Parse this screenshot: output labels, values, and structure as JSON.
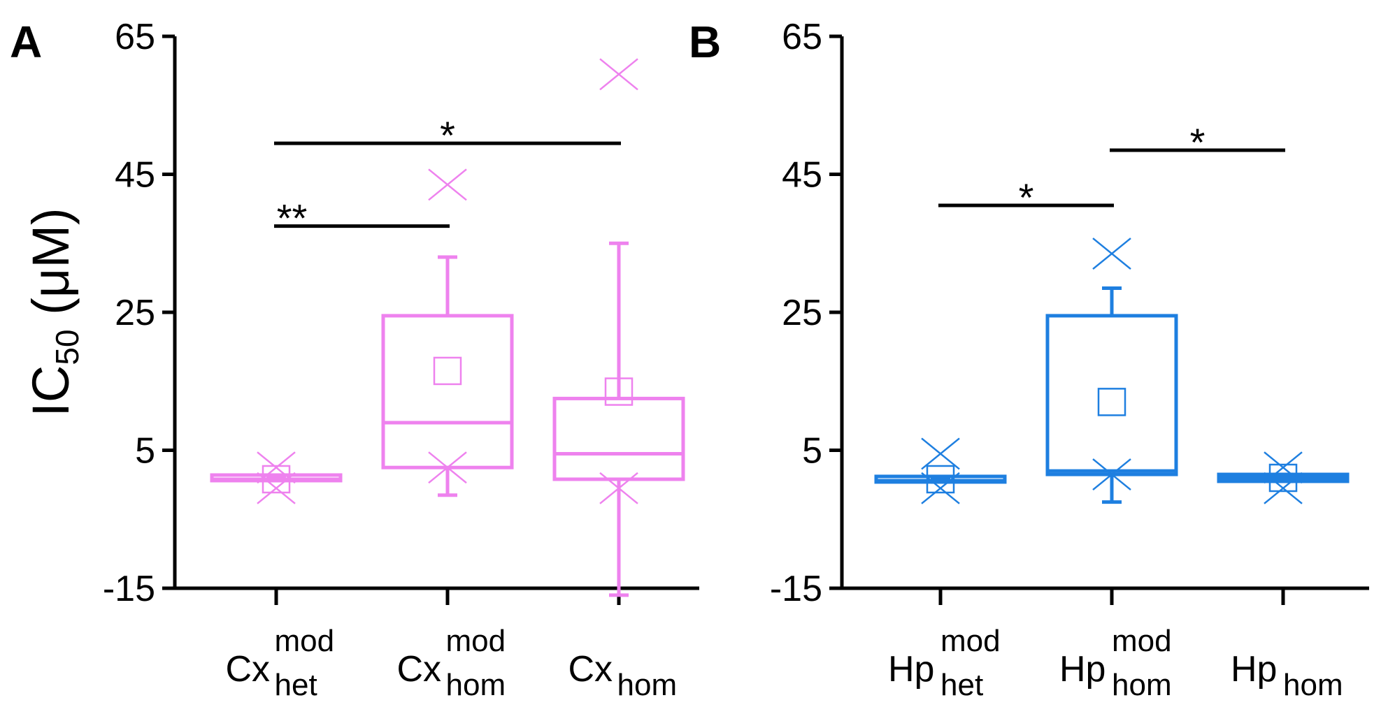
{
  "chart_data": [
    {
      "type": "box",
      "panel_label": "A",
      "ylabel": "IC",
      "ylabel_sub": "50",
      "ylabel_unit": " (μM)",
      "ylim": [
        -15,
        65
      ],
      "yticks": [
        -15,
        5,
        25,
        45,
        65
      ],
      "ytick_labels": [
        "-15",
        "5",
        "25",
        "45",
        "65"
      ],
      "color": "#EE82EE",
      "categories": [
        {
          "base": "Cx",
          "sup": "mod",
          "sub": "het"
        },
        {
          "base": "Cx",
          "sup": "mod",
          "sub": "hom"
        },
        {
          "base": "Cx",
          "sup": "",
          "sub": "hom"
        }
      ],
      "boxes": [
        {
          "q1": 0.6,
          "median": 0.8,
          "q3": 1.0,
          "whisker_low": 0.6,
          "whisker_high": 1.0,
          "mean": 0.8,
          "outliers": [
            2.5,
            -0.5
          ]
        },
        {
          "q1": 2.5,
          "median": 9.0,
          "q3": 24.5,
          "whisker_low": -1.5,
          "whisker_high": 33.0,
          "mean": 16.5,
          "outliers": [
            43.5,
            2.5
          ]
        },
        {
          "q1": 0.8,
          "median": 4.5,
          "q3": 12.5,
          "whisker_low": -16.0,
          "whisker_high": 35.0,
          "mean": 13.5,
          "outliers": [
            59.5,
            -0.5
          ]
        }
      ],
      "significance": [
        {
          "from": 0,
          "to": 1,
          "y": 37.5,
          "label": "**"
        },
        {
          "from": 0,
          "to": 2,
          "y": 49.5,
          "label": "*"
        }
      ]
    },
    {
      "type": "box",
      "panel_label": "B",
      "ylim": [
        -15,
        65
      ],
      "yticks": [
        -15,
        5,
        25,
        45,
        65
      ],
      "ytick_labels": [
        "-15",
        "5",
        "25",
        "45",
        "65"
      ],
      "color": "#1E7FE0",
      "categories": [
        {
          "base": "Hp",
          "sup": "mod",
          "sub": "het"
        },
        {
          "base": "Hp",
          "sup": "mod",
          "sub": "hom"
        },
        {
          "base": "Hp",
          "sup": "",
          "sub": "hom"
        }
      ],
      "boxes": [
        {
          "q1": 0.4,
          "median": 0.6,
          "q3": 0.8,
          "whisker_low": 0.4,
          "whisker_high": 0.8,
          "mean": 0.8,
          "outliers": [
            4.5,
            -0.5
          ]
        },
        {
          "q1": 1.5,
          "median": 2.0,
          "q3": 24.5,
          "whisker_low": -2.5,
          "whisker_high": 28.5,
          "mean": 12.0,
          "outliers": [
            33.5,
            1.5
          ]
        },
        {
          "q1": 0.5,
          "median": 1.0,
          "q3": 1.5,
          "whisker_low": 0.5,
          "whisker_high": 1.5,
          "mean": 1.0,
          "outliers": [
            2.5,
            -0.5
          ]
        }
      ],
      "significance": [
        {
          "from": 0,
          "to": 1,
          "y": 40.5,
          "label": "*"
        },
        {
          "from": 1,
          "to": 2,
          "y": 48.5,
          "label": "*"
        }
      ]
    }
  ]
}
